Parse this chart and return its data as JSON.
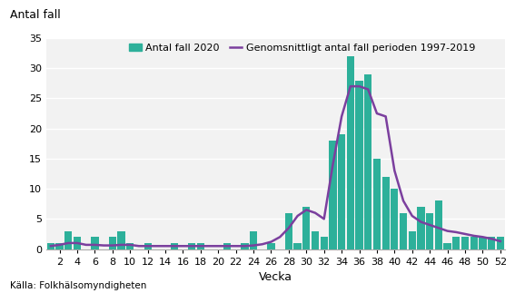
{
  "weeks": [
    1,
    2,
    3,
    4,
    5,
    6,
    7,
    8,
    9,
    10,
    11,
    12,
    13,
    14,
    15,
    16,
    17,
    18,
    19,
    20,
    21,
    22,
    23,
    24,
    25,
    26,
    27,
    28,
    29,
    30,
    31,
    32,
    33,
    34,
    35,
    36,
    37,
    38,
    39,
    40,
    41,
    42,
    43,
    44,
    45,
    46,
    47,
    48,
    49,
    50,
    51,
    52
  ],
  "bar_values": [
    1,
    1,
    3,
    2,
    0,
    2,
    0,
    2,
    3,
    1,
    0,
    1,
    0,
    0,
    1,
    0,
    1,
    1,
    0,
    0,
    1,
    0,
    1,
    3,
    0,
    1,
    0,
    6,
    1,
    7,
    3,
    2,
    18,
    19,
    32,
    28,
    29,
    15,
    12,
    10,
    6,
    3,
    7,
    6,
    8,
    1,
    2,
    2,
    2,
    2,
    2,
    2
  ],
  "avg_values": [
    0.5,
    0.7,
    1.0,
    1.0,
    0.7,
    0.7,
    0.6,
    0.6,
    0.7,
    0.7,
    0.5,
    0.5,
    0.5,
    0.5,
    0.5,
    0.5,
    0.5,
    0.5,
    0.5,
    0.5,
    0.5,
    0.5,
    0.5,
    0.6,
    0.8,
    1.2,
    2.0,
    3.5,
    5.5,
    6.5,
    6.0,
    5.0,
    14.0,
    22.0,
    27.0,
    27.0,
    26.5,
    22.5,
    22.0,
    13.0,
    8.0,
    5.5,
    4.5,
    4.0,
    3.5,
    3.0,
    2.8,
    2.5,
    2.2,
    2.0,
    1.7,
    1.3
  ],
  "bar_color": "#2db09a",
  "line_color": "#7b3f9e",
  "ylabel": "Antal fall",
  "xlabel": "Vecka",
  "yticks": [
    0,
    5,
    10,
    15,
    20,
    25,
    30,
    35
  ],
  "xtick_labels": [
    "2",
    "4",
    "6",
    "8",
    "10",
    "12",
    "14",
    "16",
    "18",
    "20",
    "22",
    "24",
    "26",
    "28",
    "30",
    "32",
    "34",
    "36",
    "38",
    "40",
    "42",
    "44",
    "46",
    "48",
    "50",
    "52"
  ],
  "ylim": [
    0,
    35
  ],
  "legend_bar": "Antal fall 2020",
  "legend_line": "Genomsnittligt antal fall perioden 1997-2019",
  "source": "Källa: Folkhälsomyndigheten",
  "background_color": "#f2f2f2",
  "grid_color": "#ffffff",
  "title_fontsize": 9,
  "tick_fontsize": 8,
  "legend_fontsize": 8
}
